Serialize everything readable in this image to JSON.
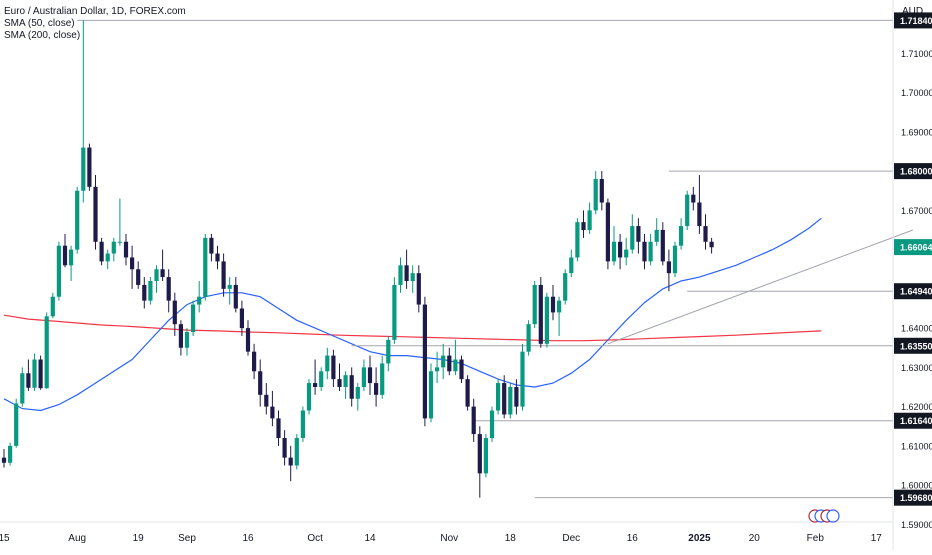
{
  "chart_data": {
    "type": "candlestick",
    "title": "Euro / Australian Dollar, 1D, FOREX.com",
    "indicators": [
      "SMA (50, close)",
      "SMA (200, close)"
    ],
    "currency": "AUD",
    "ylim": [
      1.5906,
      1.7236
    ],
    "y_ticks": [
      "1.71000",
      "1.70000",
      "1.69000",
      "1.67000",
      "1.64000",
      "1.63000",
      "1.62000",
      "1.61000",
      "1.60000",
      "1.59000"
    ],
    "x_ticks": [
      {
        "label": "15",
        "i": 0
      },
      {
        "label": "Aug",
        "i": 12
      },
      {
        "label": "19",
        "i": 22
      },
      {
        "label": "Sep",
        "i": 30
      },
      {
        "label": "16",
        "i": 40
      },
      {
        "label": "Oct",
        "i": 51
      },
      {
        "label": "14",
        "i": 60
      },
      {
        "label": "Nov",
        "i": 73
      },
      {
        "label": "18",
        "i": 83
      },
      {
        "label": "Dec",
        "i": 93
      },
      {
        "label": "16",
        "i": 103
      },
      {
        "label": "2025",
        "i": 114
      },
      {
        "label": "20",
        "i": 123
      },
      {
        "label": "Feb",
        "i": 133
      },
      {
        "label": "17",
        "i": 143
      }
    ],
    "levels": [
      {
        "value": 1.7184,
        "label": "1.71840",
        "start": 12
      },
      {
        "value": 1.68,
        "label": "1.68000",
        "start": 109
      },
      {
        "value": 1.6494,
        "label": "1.64940",
        "start": 112
      },
      {
        "value": 1.6355,
        "label": "1.63550",
        "start": 57
      },
      {
        "value": 1.6164,
        "label": "1.61640",
        "start": 77
      },
      {
        "value": 1.5968,
        "label": "1.59680",
        "start": 87
      }
    ],
    "last_price": {
      "value": 1.66064,
      "label": "1.66064",
      "color": "#089981"
    },
    "trendline": [
      {
        "i": 99,
        "value": 1.636
      },
      {
        "i": 149,
        "value": 1.665
      }
    ],
    "colors": {
      "up": "#089981",
      "down": "#1e1b4b",
      "sma50": "#2962ff",
      "sma200": "#f23645",
      "level_label_bg": "#131722"
    },
    "candles": [
      [
        1.607,
        1.6092,
        1.6045,
        1.6057
      ],
      [
        1.6057,
        1.6108,
        1.605,
        1.61
      ],
      [
        1.61,
        1.622,
        1.6095,
        1.6208
      ],
      [
        1.6208,
        1.63,
        1.62,
        1.6285
      ],
      [
        1.6285,
        1.632,
        1.624,
        1.6248
      ],
      [
        1.6248,
        1.6335,
        1.624,
        1.632
      ],
      [
        1.632,
        1.633,
        1.6243,
        1.6247
      ],
      [
        1.6247,
        1.644,
        1.6245,
        1.643
      ],
      [
        1.643,
        1.649,
        1.6425,
        1.648
      ],
      [
        1.648,
        1.662,
        1.647,
        1.661
      ],
      [
        1.661,
        1.664,
        1.6555,
        1.656
      ],
      [
        1.656,
        1.661,
        1.652,
        1.66
      ],
      [
        1.66,
        1.676,
        1.659,
        1.675
      ],
      [
        1.675,
        1.7184,
        1.672,
        1.686
      ],
      [
        1.686,
        1.687,
        1.675,
        1.676
      ],
      [
        1.676,
        1.679,
        1.66,
        1.662
      ],
      [
        1.662,
        1.663,
        1.656,
        1.657
      ],
      [
        1.657,
        1.66,
        1.655,
        1.659
      ],
      [
        1.659,
        1.663,
        1.657,
        1.662
      ],
      [
        1.662,
        1.673,
        1.661,
        1.662
      ],
      [
        1.662,
        1.664,
        1.656,
        1.658
      ],
      [
        1.658,
        1.661,
        1.65,
        1.655
      ],
      [
        1.655,
        1.657,
        1.65,
        1.651
      ],
      [
        1.651,
        1.653,
        1.645,
        1.647
      ],
      [
        1.647,
        1.653,
        1.646,
        1.652
      ],
      [
        1.652,
        1.656,
        1.649,
        1.655
      ],
      [
        1.655,
        1.66,
        1.652,
        1.653
      ],
      [
        1.653,
        1.655,
        1.644,
        1.647
      ],
      [
        1.647,
        1.649,
        1.638,
        1.641
      ],
      [
        1.641,
        1.642,
        1.633,
        1.635
      ],
      [
        1.635,
        1.64,
        1.633,
        1.639
      ],
      [
        1.639,
        1.647,
        1.638,
        1.646
      ],
      [
        1.646,
        1.652,
        1.644,
        1.648
      ],
      [
        1.648,
        1.664,
        1.647,
        1.663
      ],
      [
        1.663,
        1.664,
        1.657,
        1.659
      ],
      [
        1.659,
        1.661,
        1.655,
        1.657
      ],
      [
        1.657,
        1.659,
        1.648,
        1.65
      ],
      [
        1.65,
        1.653,
        1.646,
        1.651
      ],
      [
        1.651,
        1.653,
        1.644,
        1.645
      ],
      [
        1.645,
        1.647,
        1.638,
        1.64
      ],
      [
        1.64,
        1.642,
        1.633,
        1.634
      ],
      [
        1.634,
        1.636,
        1.627,
        1.629
      ],
      [
        1.629,
        1.632,
        1.62,
        1.623
      ],
      [
        1.623,
        1.626,
        1.618,
        1.62
      ],
      [
        1.62,
        1.624,
        1.615,
        1.617
      ],
      [
        1.617,
        1.619,
        1.61,
        1.612
      ],
      [
        1.612,
        1.614,
        1.605,
        1.607
      ],
      [
        1.607,
        1.61,
        1.601,
        1.605
      ],
      [
        1.605,
        1.613,
        1.604,
        1.612
      ],
      [
        1.612,
        1.62,
        1.611,
        1.619
      ],
      [
        1.619,
        1.627,
        1.618,
        1.626
      ],
      [
        1.626,
        1.632,
        1.623,
        1.625
      ],
      [
        1.625,
        1.63,
        1.624,
        1.629
      ],
      [
        1.629,
        1.635,
        1.627,
        1.633
      ],
      [
        1.633,
        1.6345,
        1.625,
        1.627
      ],
      [
        1.627,
        1.631,
        1.624,
        1.625
      ],
      [
        1.625,
        1.629,
        1.622,
        1.628
      ],
      [
        1.628,
        1.63,
        1.62,
        1.622
      ],
      [
        1.622,
        1.626,
        1.619,
        1.625
      ],
      [
        1.625,
        1.632,
        1.624,
        1.63
      ],
      [
        1.63,
        1.633,
        1.623,
        1.626
      ],
      [
        1.626,
        1.63,
        1.62,
        1.623
      ],
      [
        1.623,
        1.633,
        1.622,
        1.631
      ],
      [
        1.631,
        1.638,
        1.629,
        1.637
      ],
      [
        1.637,
        1.653,
        1.636,
        1.651
      ],
      [
        1.651,
        1.658,
        1.649,
        1.656
      ],
      [
        1.656,
        1.66,
        1.65,
        1.652
      ],
      [
        1.652,
        1.656,
        1.649,
        1.654
      ],
      [
        1.654,
        1.656,
        1.644,
        1.646
      ],
      [
        1.646,
        1.648,
        1.615,
        1.617
      ],
      [
        1.617,
        1.631,
        1.616,
        1.629
      ],
      [
        1.629,
        1.634,
        1.626,
        1.63
      ],
      [
        1.63,
        1.636,
        1.627,
        1.633
      ],
      [
        1.633,
        1.635,
        1.628,
        1.629
      ],
      [
        1.629,
        1.637,
        1.628,
        1.632
      ],
      [
        1.632,
        1.633,
        1.626,
        1.627
      ],
      [
        1.627,
        1.628,
        1.619,
        1.62
      ],
      [
        1.62,
        1.622,
        1.611,
        1.613
      ],
      [
        1.613,
        1.615,
        1.5968,
        1.603
      ],
      [
        1.603,
        1.613,
        1.602,
        1.612
      ],
      [
        1.612,
        1.62,
        1.611,
        1.619
      ],
      [
        1.619,
        1.627,
        1.618,
        1.626
      ],
      [
        1.626,
        1.628,
        1.617,
        1.618
      ],
      [
        1.618,
        1.626,
        1.617,
        1.625
      ],
      [
        1.625,
        1.627,
        1.618,
        1.62
      ],
      [
        1.62,
        1.636,
        1.619,
        1.634
      ],
      [
        1.634,
        1.642,
        1.633,
        1.641
      ],
      [
        1.641,
        1.652,
        1.64,
        1.651
      ],
      [
        1.651,
        1.653,
        1.635,
        1.636
      ],
      [
        1.636,
        1.649,
        1.635,
        1.648
      ],
      [
        1.648,
        1.651,
        1.642,
        1.644
      ],
      [
        1.644,
        1.648,
        1.638,
        1.647
      ],
      [
        1.647,
        1.655,
        1.646,
        1.654
      ],
      [
        1.654,
        1.66,
        1.653,
        1.658
      ],
      [
        1.658,
        1.668,
        1.657,
        1.667
      ],
      [
        1.667,
        1.67,
        1.663,
        1.665
      ],
      [
        1.665,
        1.672,
        1.664,
        1.67
      ],
      [
        1.67,
        1.68,
        1.669,
        1.678
      ],
      [
        1.678,
        1.68,
        1.67,
        1.672
      ],
      [
        1.672,
        1.673,
        1.655,
        1.657
      ],
      [
        1.657,
        1.666,
        1.656,
        1.662
      ],
      [
        1.662,
        1.664,
        1.655,
        1.658
      ],
      [
        1.658,
        1.663,
        1.656,
        1.66
      ],
      [
        1.66,
        1.669,
        1.659,
        1.666
      ],
      [
        1.666,
        1.668,
        1.659,
        1.662
      ],
      [
        1.662,
        1.664,
        1.655,
        1.657
      ],
      [
        1.657,
        1.664,
        1.656,
        1.662
      ],
      [
        1.662,
        1.668,
        1.661,
        1.665
      ],
      [
        1.665,
        1.667,
        1.656,
        1.657
      ],
      [
        1.657,
        1.66,
        1.6494,
        1.654
      ],
      [
        1.654,
        1.662,
        1.653,
        1.661
      ],
      [
        1.661,
        1.668,
        1.66,
        1.666
      ],
      [
        1.666,
        1.675,
        1.665,
        1.674
      ],
      [
        1.674,
        1.676,
        1.67,
        1.672
      ],
      [
        1.672,
        1.679,
        1.664,
        1.666
      ],
      [
        1.666,
        1.669,
        1.66,
        1.662
      ],
      [
        1.662,
        1.663,
        1.659,
        1.6606
      ]
    ],
    "sma50": [
      [
        0,
        1.622
      ],
      [
        3,
        1.6195
      ],
      [
        6,
        1.619
      ],
      [
        9,
        1.6205
      ],
      [
        12,
        1.623
      ],
      [
        15,
        1.626
      ],
      [
        18,
        1.629
      ],
      [
        21,
        1.632
      ],
      [
        24,
        1.637
      ],
      [
        27,
        1.642
      ],
      [
        30,
        1.646
      ],
      [
        33,
        1.648
      ],
      [
        36,
        1.649
      ],
      [
        39,
        1.649
      ],
      [
        42,
        1.648
      ],
      [
        45,
        1.645
      ],
      [
        48,
        1.642
      ],
      [
        51,
        1.64
      ],
      [
        54,
        1.638
      ],
      [
        57,
        1.636
      ],
      [
        60,
        1.634
      ],
      [
        63,
        1.633
      ],
      [
        66,
        1.633
      ],
      [
        69,
        1.6325
      ],
      [
        72,
        1.632
      ],
      [
        75,
        1.631
      ],
      [
        78,
        1.629
      ],
      [
        81,
        1.627
      ],
      [
        84,
        1.6255
      ],
      [
        87,
        1.625
      ],
      [
        90,
        1.626
      ],
      [
        93,
        1.6285
      ],
      [
        96,
        1.632
      ],
      [
        99,
        1.637
      ],
      [
        102,
        1.642
      ],
      [
        105,
        1.6465
      ],
      [
        108,
        1.65
      ],
      [
        111,
        1.652
      ],
      [
        114,
        1.653
      ],
      [
        117,
        1.6545
      ],
      [
        120,
        1.656
      ],
      [
        123,
        1.658
      ],
      [
        126,
        1.66
      ],
      [
        129,
        1.6625
      ],
      [
        132,
        1.6655
      ],
      [
        134,
        1.668
      ]
    ],
    "sma200": [
      [
        0,
        1.6433
      ],
      [
        4,
        1.6423
      ],
      [
        8,
        1.6418
      ],
      [
        12,
        1.6413
      ],
      [
        16,
        1.6408
      ],
      [
        20,
        1.6405
      ],
      [
        25,
        1.64
      ],
      [
        30,
        1.6395
      ],
      [
        35,
        1.6393
      ],
      [
        40,
        1.639
      ],
      [
        45,
        1.6388
      ],
      [
        50,
        1.6385
      ],
      [
        55,
        1.6382
      ],
      [
        60,
        1.638
      ],
      [
        65,
        1.6378
      ],
      [
        70,
        1.6376
      ],
      [
        75,
        1.6374
      ],
      [
        80,
        1.6372
      ],
      [
        85,
        1.637
      ],
      [
        90,
        1.6368
      ],
      [
        95,
        1.6368
      ],
      [
        100,
        1.637
      ],
      [
        105,
        1.6373
      ],
      [
        110,
        1.6376
      ],
      [
        115,
        1.6379
      ],
      [
        120,
        1.6382
      ],
      [
        125,
        1.6386
      ],
      [
        130,
        1.639
      ],
      [
        134,
        1.6393
      ]
    ]
  }
}
